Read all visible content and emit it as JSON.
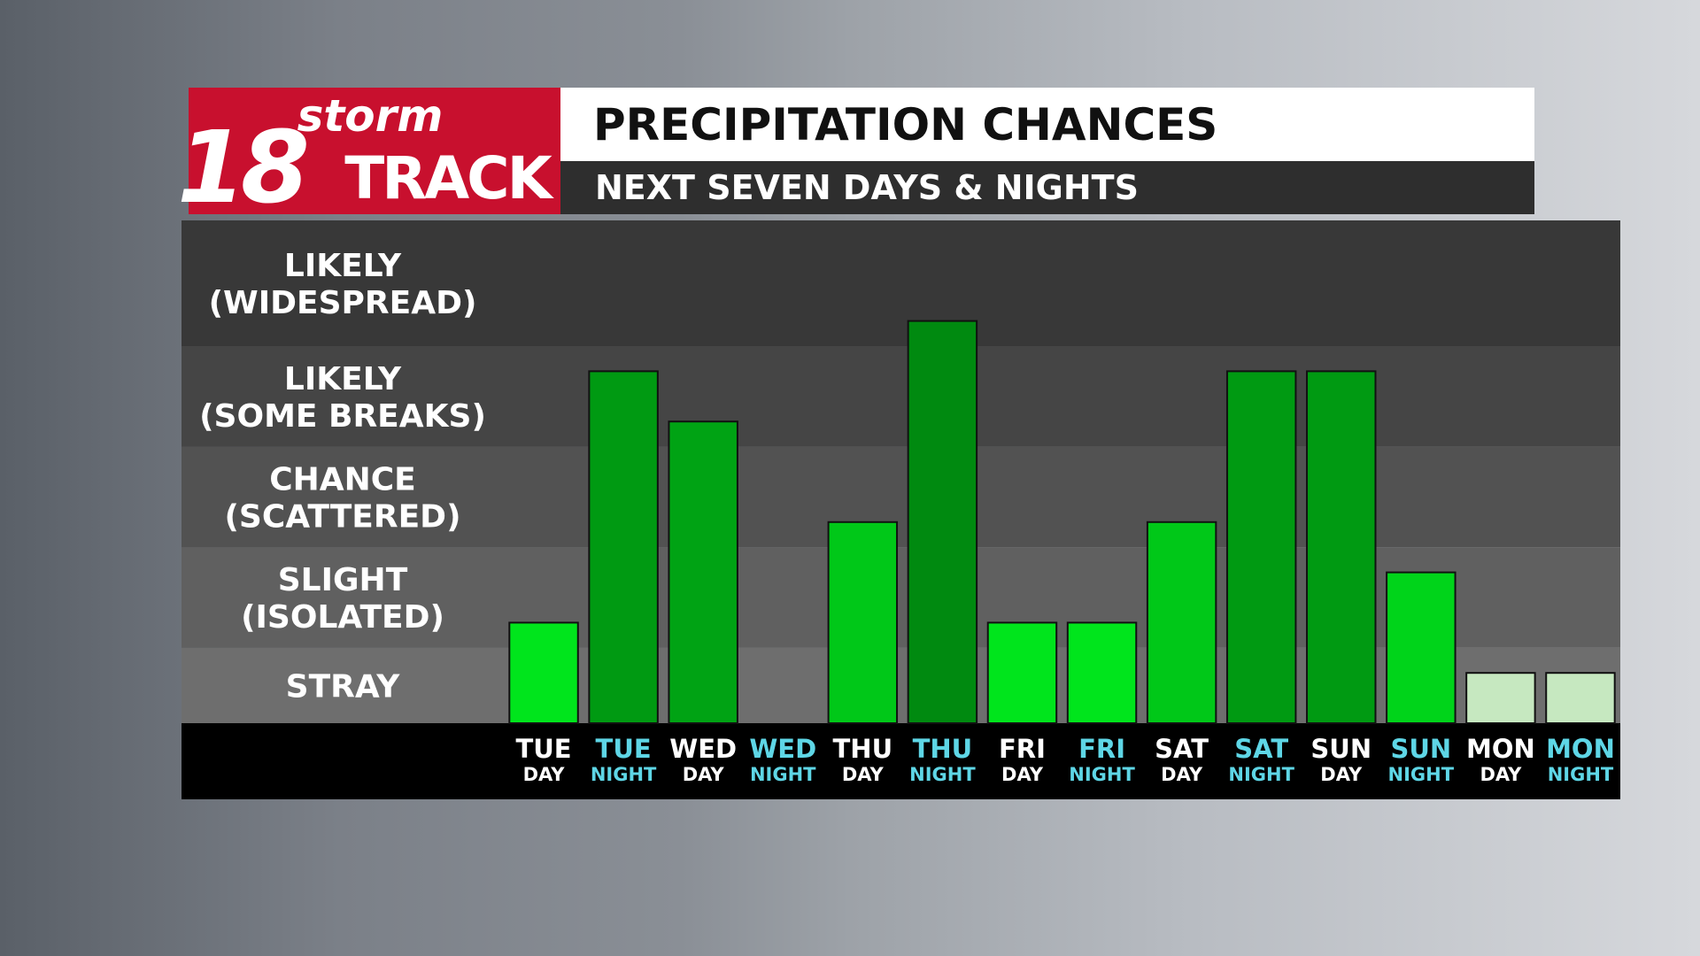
{
  "header": {
    "logo_number": "18",
    "logo_top": "storm",
    "logo_bottom": "TRACK"
  },
  "chart_data": {
    "type": "bar",
    "title": "PRECIPITATION CHANCES",
    "subtitle": "NEXT SEVEN DAYS & NIGHTS",
    "categories": [
      [
        "TUE",
        "DAY"
      ],
      [
        "TUE",
        "NIGHT"
      ],
      [
        "WED",
        "DAY"
      ],
      [
        "WED",
        "NIGHT"
      ],
      [
        "THU",
        "DAY"
      ],
      [
        "THU",
        "NIGHT"
      ],
      [
        "FRI",
        "DAY"
      ],
      [
        "FRI",
        "NIGHT"
      ],
      [
        "SAT",
        "DAY"
      ],
      [
        "SAT",
        "NIGHT"
      ],
      [
        "SUN",
        "DAY"
      ],
      [
        "SUN",
        "NIGHT"
      ],
      [
        "MON",
        "DAY"
      ],
      [
        "MON",
        "NIGHT"
      ]
    ],
    "label_colors": [
      "#ffffff",
      "#5ed6e6",
      "#ffffff",
      "#5ed6e6",
      "#ffffff",
      "#5ed6e6",
      "#ffffff",
      "#5ed6e6",
      "#ffffff",
      "#5ed6e6",
      "#ffffff",
      "#5ed6e6",
      "#ffffff",
      "#5ed6e6"
    ],
    "values": [
      2,
      7,
      6,
      0,
      4,
      8,
      2,
      2,
      4,
      7,
      7,
      3,
      1,
      1
    ],
    "colors": [
      "#00e51c",
      "#009a12",
      "#00a314",
      "#00a314",
      "#00c818",
      "#008a10",
      "#00e51c",
      "#00e51c",
      "#00c818",
      "#009a12",
      "#009a12",
      "#00d41a",
      "#c6e8c0",
      "#c6e8c0"
    ],
    "ylim": [
      0,
      10
    ],
    "ybands": [
      {
        "from": 0,
        "to": 1.5,
        "label": [
          "STRAY"
        ],
        "color": "#6e6e6e"
      },
      {
        "from": 1.5,
        "to": 3.5,
        "label": [
          "SLIGHT",
          "(ISOLATED)"
        ],
        "color": "#606060"
      },
      {
        "from": 3.5,
        "to": 5.5,
        "label": [
          "CHANCE",
          "(SCATTERED)"
        ],
        "color": "#525252"
      },
      {
        "from": 5.5,
        "to": 7.5,
        "label": [
          "LIKELY",
          "(SOME BREAKS)"
        ],
        "color": "#454545"
      },
      {
        "from": 7.5,
        "to": 10,
        "label": [
          "LIKELY",
          "(WIDESPREAD)"
        ],
        "color": "#383838"
      }
    ]
  }
}
